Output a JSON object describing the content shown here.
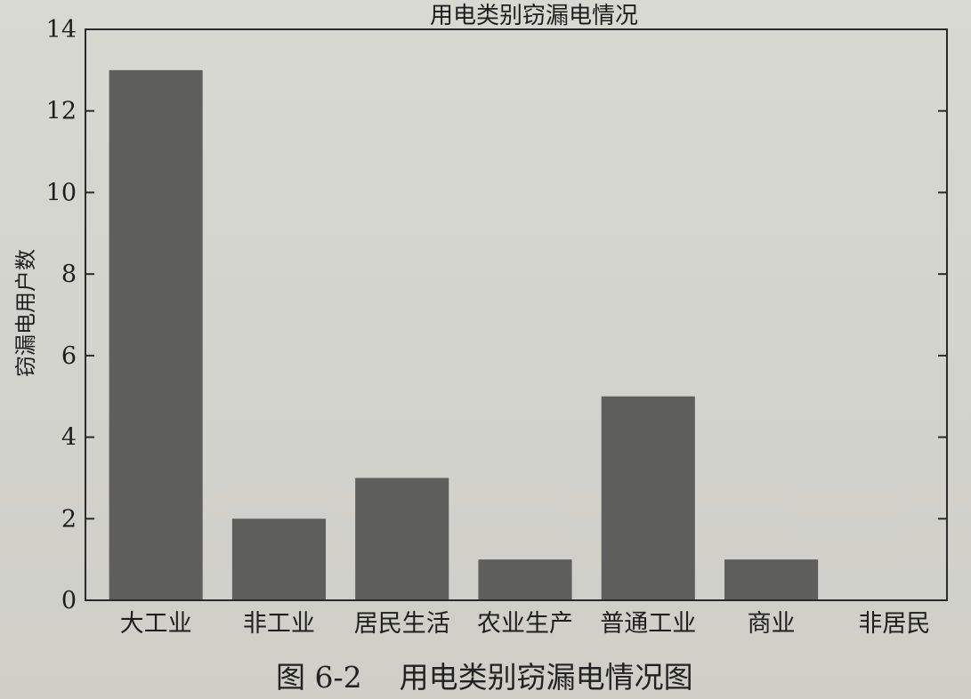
{
  "chart_data": {
    "type": "bar",
    "title": "用电类别窃漏电情况",
    "xlabel": "",
    "ylabel": "窃漏电用户数",
    "categories": [
      "大工业",
      "非工业",
      "居民生活",
      "农业生产",
      "普通工业",
      "商业",
      "非居民"
    ],
    "values": [
      13,
      2,
      3,
      1,
      5,
      1,
      0
    ],
    "ylim": [
      0,
      14
    ],
    "yticks": [
      0,
      2,
      4,
      6,
      8,
      10,
      12,
      14
    ],
    "grid": false,
    "legend": "none",
    "bar_color": "#5e5e5c"
  },
  "caption": "图 6-2    用电类别窃漏电情况图"
}
